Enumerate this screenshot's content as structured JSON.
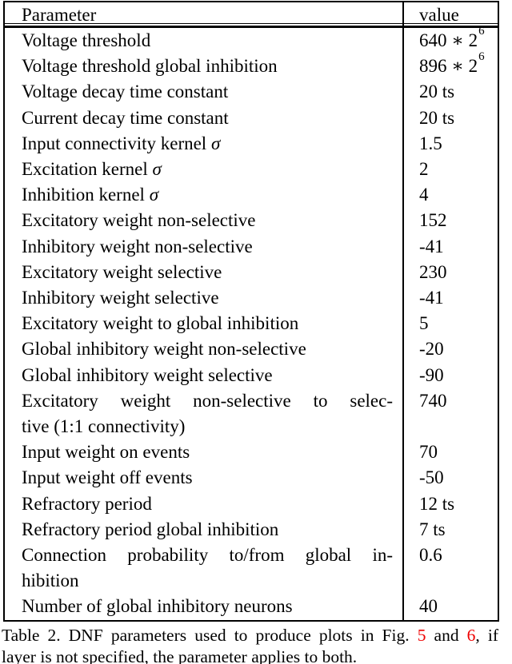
{
  "colors": {
    "text": "#000000",
    "background": "#ffffff",
    "figure_ref_red": "#ee0000",
    "border": "#000000"
  },
  "table": {
    "header": {
      "param": "Parameter",
      "value": "value"
    },
    "rows": [
      {
        "param_lines": [
          "Voltage threshold"
        ],
        "value": "640 ∗ 2",
        "value_sup": "6"
      },
      {
        "param_lines": [
          "Voltage threshold global inhibition"
        ],
        "value": "896 ∗ 2",
        "value_sup": "6"
      },
      {
        "param_lines": [
          "Voltage decay time constant"
        ],
        "value": "20 ts",
        "value_sup": ""
      },
      {
        "param_lines": [
          "Current decay time constant"
        ],
        "value": "20 ts",
        "value_sup": ""
      },
      {
        "param_lines": [
          "Input connectivity kernel σ"
        ],
        "value": "1.5",
        "value_sup": ""
      },
      {
        "param_lines": [
          "Excitation kernel σ"
        ],
        "value": "2",
        "value_sup": ""
      },
      {
        "param_lines": [
          "Inhibition kernel σ"
        ],
        "value": "4",
        "value_sup": ""
      },
      {
        "param_lines": [
          "Excitatory weight non-selective"
        ],
        "value": "152",
        "value_sup": ""
      },
      {
        "param_lines": [
          "Inhibitory weight non-selective"
        ],
        "value": "-41",
        "value_sup": ""
      },
      {
        "param_lines": [
          "Excitatory weight selective"
        ],
        "value": "230",
        "value_sup": ""
      },
      {
        "param_lines": [
          "Inhibitory weight selective"
        ],
        "value": "-41",
        "value_sup": ""
      },
      {
        "param_lines": [
          "Excitatory weight to global inhibition"
        ],
        "value": "5",
        "value_sup": ""
      },
      {
        "param_lines": [
          "Global inhibitory weight non-selective"
        ],
        "value": "-20",
        "value_sup": ""
      },
      {
        "param_lines": [
          "Global inhibitory weight selective"
        ],
        "value": "-90",
        "value_sup": ""
      },
      {
        "param_lines": [
          "Excitatory weight non-selective to selec-",
          "tive (1:1 connectivity)"
        ],
        "value": "740",
        "value_sup": ""
      },
      {
        "param_lines": [
          "Input weight on events"
        ],
        "value": "70",
        "value_sup": ""
      },
      {
        "param_lines": [
          "Input weight off events"
        ],
        "value": "-50",
        "value_sup": ""
      },
      {
        "param_lines": [
          "Refractory period"
        ],
        "value": "12 ts",
        "value_sup": ""
      },
      {
        "param_lines": [
          "Refractory period global inhibition"
        ],
        "value": "7 ts",
        "value_sup": ""
      },
      {
        "param_lines": [
          "Connection probability to/from global in-",
          "hibition"
        ],
        "value": "0.6",
        "value_sup": ""
      },
      {
        "param_lines": [
          "Number of global inhibitory neurons"
        ],
        "value": "40",
        "value_sup": ""
      }
    ]
  },
  "caption": {
    "line1": [
      {
        "t": "Table 2. DNF parameters used to produce plots in Fig. ",
        "red": false
      },
      {
        "t": "5",
        "red": true
      },
      {
        "t": " and ",
        "red": false
      },
      {
        "t": "6",
        "red": true
      },
      {
        "t": ", if",
        "red": false
      }
    ],
    "line2": "layer is not specified, the parameter applies to both."
  }
}
